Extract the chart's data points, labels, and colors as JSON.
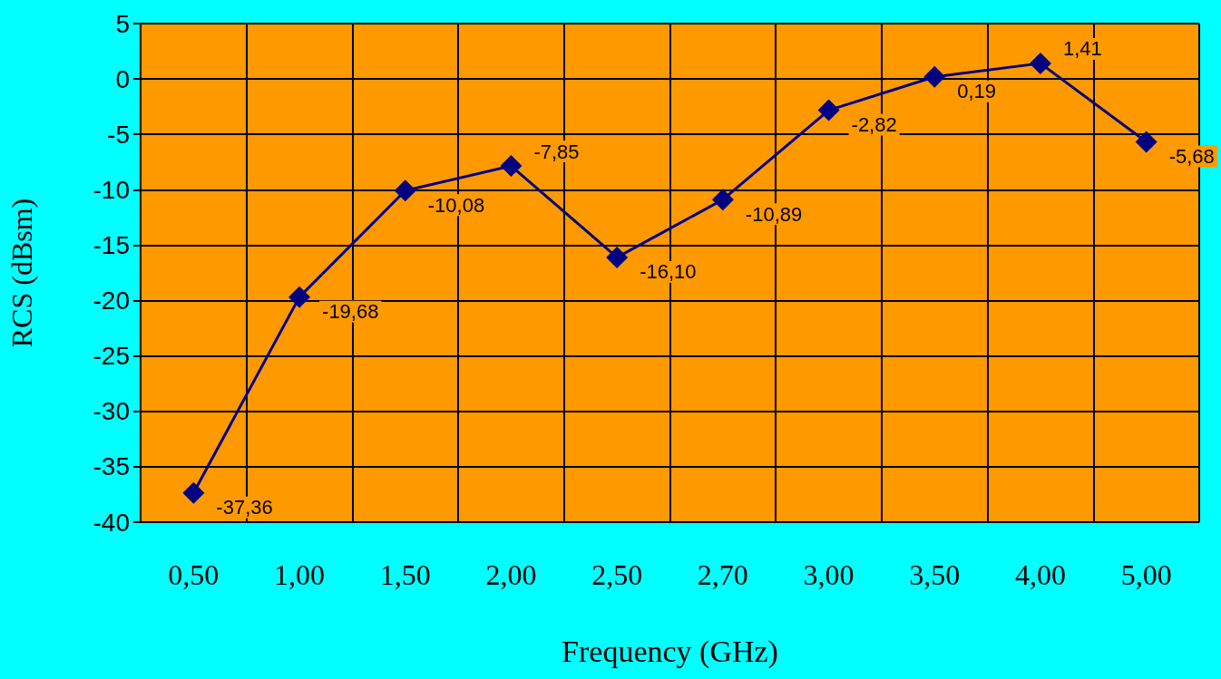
{
  "chart_data": {
    "type": "line",
    "xlabel": "Frequency (GHz)",
    "ylabel": "RCS (dBsm)",
    "categories": [
      "0,50",
      "1,00",
      "1,50",
      "2,00",
      "2,50",
      "2,70",
      "3,00",
      "3,50",
      "4,00",
      "5,00"
    ],
    "series": [
      {
        "color": "#000080",
        "values": [
          -37.36,
          -19.68,
          -10.08,
          -7.85,
          -16.1,
          -10.89,
          -2.82,
          0.19,
          1.41,
          -5.68
        ],
        "value_labels": [
          "-37,36",
          "-19,68",
          "-10,08",
          "-7,85",
          "-16,10",
          "-10,89",
          "-2,82",
          "0,19",
          "1,41",
          "-5,68"
        ]
      }
    ],
    "ylim": [
      -40,
      5
    ],
    "yticks": [
      -40,
      -35,
      -30,
      -25,
      -20,
      -15,
      -10,
      -5,
      0,
      5
    ],
    "grid": true,
    "marker": "diamond",
    "line_style": "solid"
  }
}
